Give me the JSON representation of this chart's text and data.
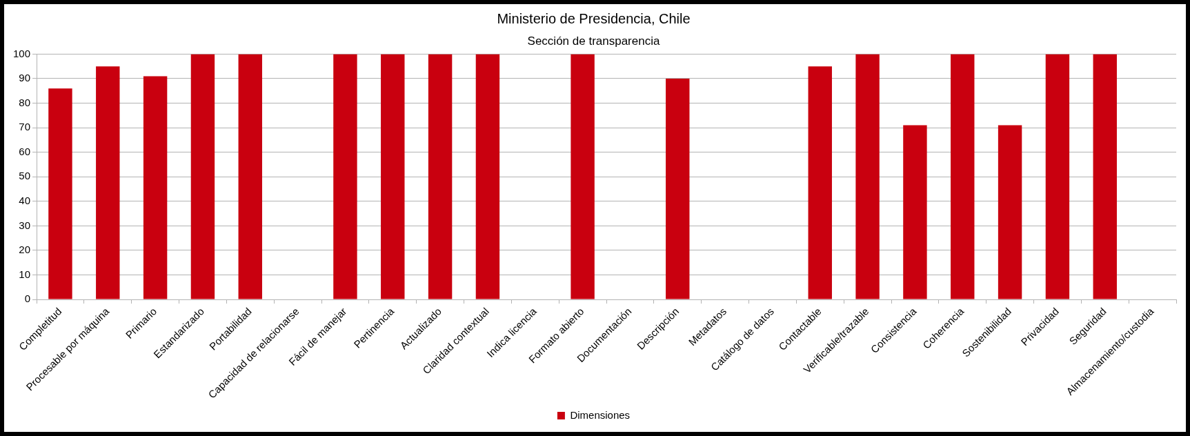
{
  "chart_data": {
    "type": "bar",
    "title": "Ministerio de Presidencia, Chile",
    "subtitle": "Sección de transparencia",
    "categories": [
      "Completitud",
      "Procesable por máquina",
      "Primario",
      "Estandarizado",
      "Portabilidad",
      "Capacidad de relacionarse",
      "Fácil de manejar",
      "Pertinencia",
      "Actualizado",
      "Claridad contextual",
      "Indica licencia",
      "Formato abierto",
      "Documentación",
      "Descripción",
      "Metadatos",
      "Catálogo de datos",
      "Contactable",
      "Verificable/trazable",
      "Consistencia",
      "Coherencia",
      "Sostenibilidad",
      "Privacidad",
      "Seguridad",
      "Almacenamiento/custodia"
    ],
    "series": [
      {
        "name": "Dimensiones",
        "color": "#c9000f",
        "values": [
          86,
          95,
          91,
          100,
          100,
          0,
          100,
          100,
          100,
          100,
          0,
          100,
          0,
          90,
          0,
          0,
          95,
          100,
          71,
          100,
          71,
          100,
          100,
          0
        ]
      }
    ],
    "ylim": [
      0,
      100
    ],
    "yticks": [
      0,
      10,
      20,
      30,
      40,
      50,
      60,
      70,
      80,
      90,
      100
    ],
    "grid": "y",
    "legend": "bottom"
  }
}
